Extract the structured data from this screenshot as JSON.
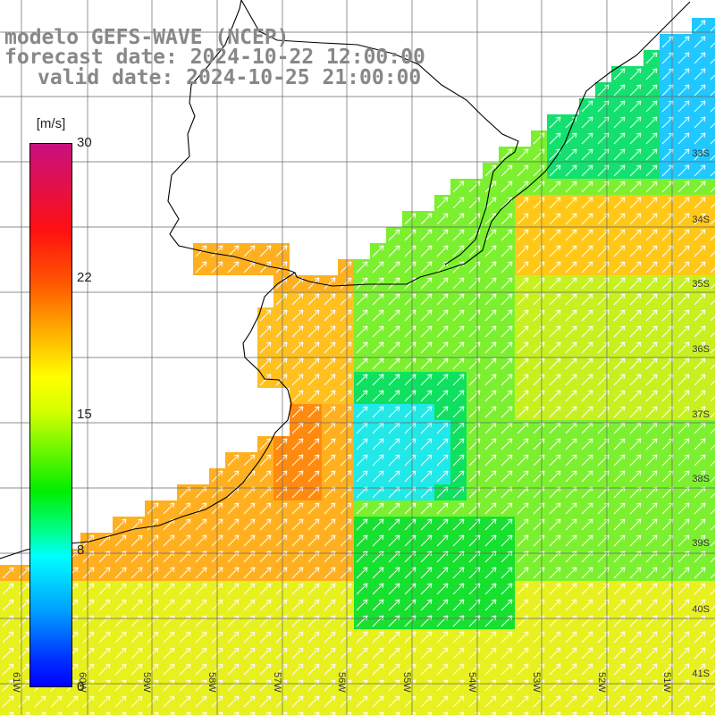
{
  "titles": {
    "line1": "modelo GEFS-WAVE (NCEP)",
    "line2": "forecast date: 2024-10-22 12:00:00",
    "line3": "valid date: 2024-10-25 21:00:00"
  },
  "colorbar": {
    "unit": "[m/s]",
    "ticks": [
      "30",
      "22",
      "15",
      "8",
      "0"
    ],
    "tick_values": [
      30,
      22,
      15,
      8,
      0
    ]
  },
  "lat_labels": [
    "33S",
    "34S",
    "35S",
    "36S",
    "37S",
    "38S",
    "39S",
    "40S",
    "41S"
  ],
  "lon_labels": [
    "61W",
    "60W",
    "59W",
    "58W",
    "57W",
    "56W",
    "55W",
    "54W",
    "53W",
    "52W",
    "51W"
  ],
  "map": {
    "field": "wind speed with direction arrows",
    "colors": {
      "land": "#ffffff",
      "coast": "#000000",
      "grid": "#666666",
      "arrows": "#ffffff"
    }
  }
}
